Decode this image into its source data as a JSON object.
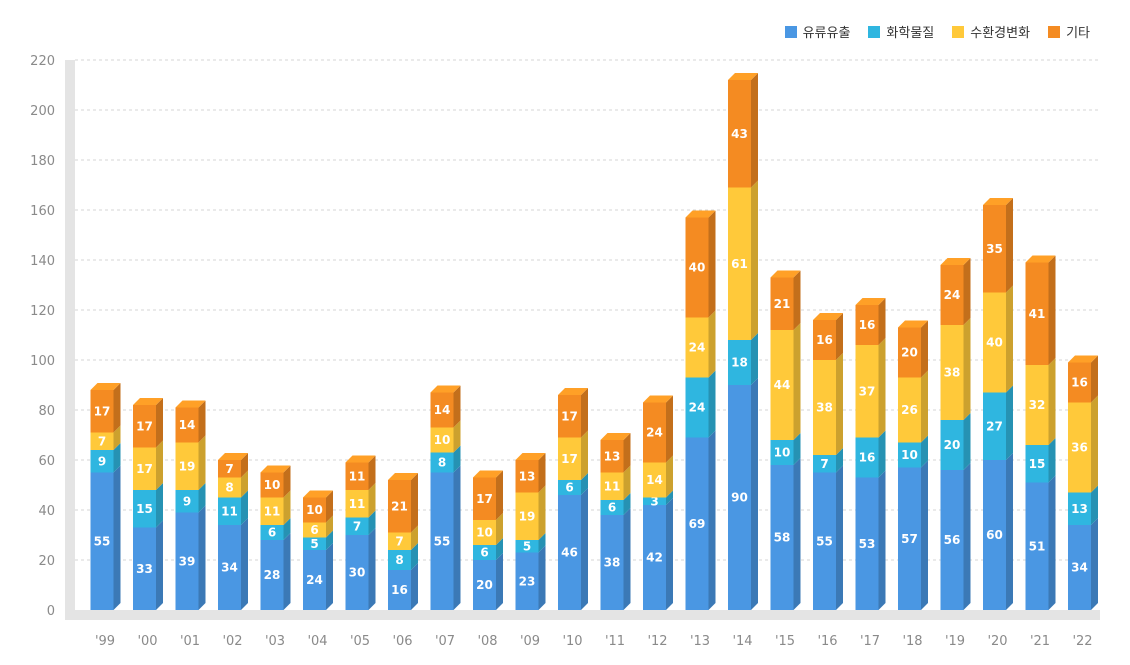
{
  "chart_data": {
    "type": "bar",
    "stacked": true,
    "categories": [
      "'99",
      "'00",
      "'01",
      "'02",
      "'03",
      "'04",
      "'05",
      "'06",
      "'07",
      "'08",
      "'09",
      "'10",
      "'11",
      "'12",
      "'13",
      "'14",
      "'15",
      "'16",
      "'17",
      "'18",
      "'19",
      "'20",
      "'21",
      "'22"
    ],
    "series": [
      {
        "name": "유류유출",
        "color": "#4a97e3",
        "values": [
          55,
          33,
          39,
          34,
          28,
          24,
          30,
          16,
          55,
          20,
          23,
          46,
          38,
          42,
          69,
          90,
          58,
          55,
          53,
          57,
          56,
          60,
          51,
          34
        ]
      },
      {
        "name": "화학물질",
        "color": "#2fb6e0",
        "values": [
          9,
          15,
          9,
          11,
          6,
          5,
          7,
          8,
          8,
          6,
          5,
          6,
          6,
          3,
          24,
          18,
          10,
          7,
          16,
          10,
          20,
          27,
          15,
          13
        ]
      },
      {
        "name": "수환경변화",
        "color": "#ffc93a",
        "values": [
          7,
          17,
          19,
          8,
          11,
          6,
          11,
          7,
          10,
          10,
          19,
          17,
          11,
          14,
          24,
          61,
          44,
          38,
          37,
          26,
          38,
          40,
          32,
          36
        ]
      },
      {
        "name": "기타",
        "color": "#f48b22",
        "values": [
          17,
          17,
          14,
          7,
          10,
          10,
          11,
          21,
          14,
          17,
          13,
          17,
          13,
          24,
          40,
          43,
          21,
          16,
          16,
          20,
          24,
          35,
          41,
          16
        ]
      }
    ],
    "yticks": [
      0,
      20,
      40,
      60,
      80,
      100,
      120,
      140,
      160,
      180,
      200,
      220
    ],
    "ylim": [
      0,
      220
    ],
    "grid": true,
    "legend_position": "top-right",
    "title": "",
    "xlabel": "",
    "ylabel": ""
  }
}
